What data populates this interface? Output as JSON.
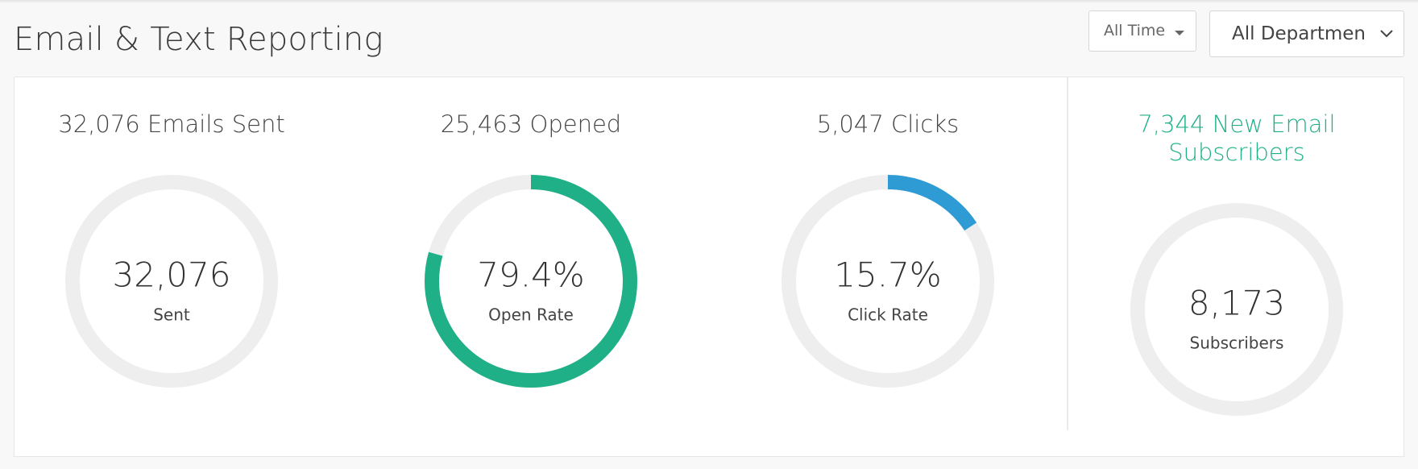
{
  "header": {
    "title": "Email & Text Reporting",
    "time_filter": "All Time",
    "department_filter": "All Departmen"
  },
  "metrics": [
    {
      "heading": "32,076 Emails Sent",
      "value": "32,076",
      "label": "Sent"
    },
    {
      "heading": "25,463 Opened",
      "rate": 79.4,
      "rate_label": "79.4%",
      "label": "Open Rate"
    },
    {
      "heading": "5,047 Clicks",
      "rate": 15.7,
      "rate_label": "15.7%",
      "label": "Click Rate"
    },
    {
      "heading": [
        "7,344 New Email",
        "Subscribers"
      ],
      "value": "8,173",
      "label": "Subscribers"
    }
  ]
}
